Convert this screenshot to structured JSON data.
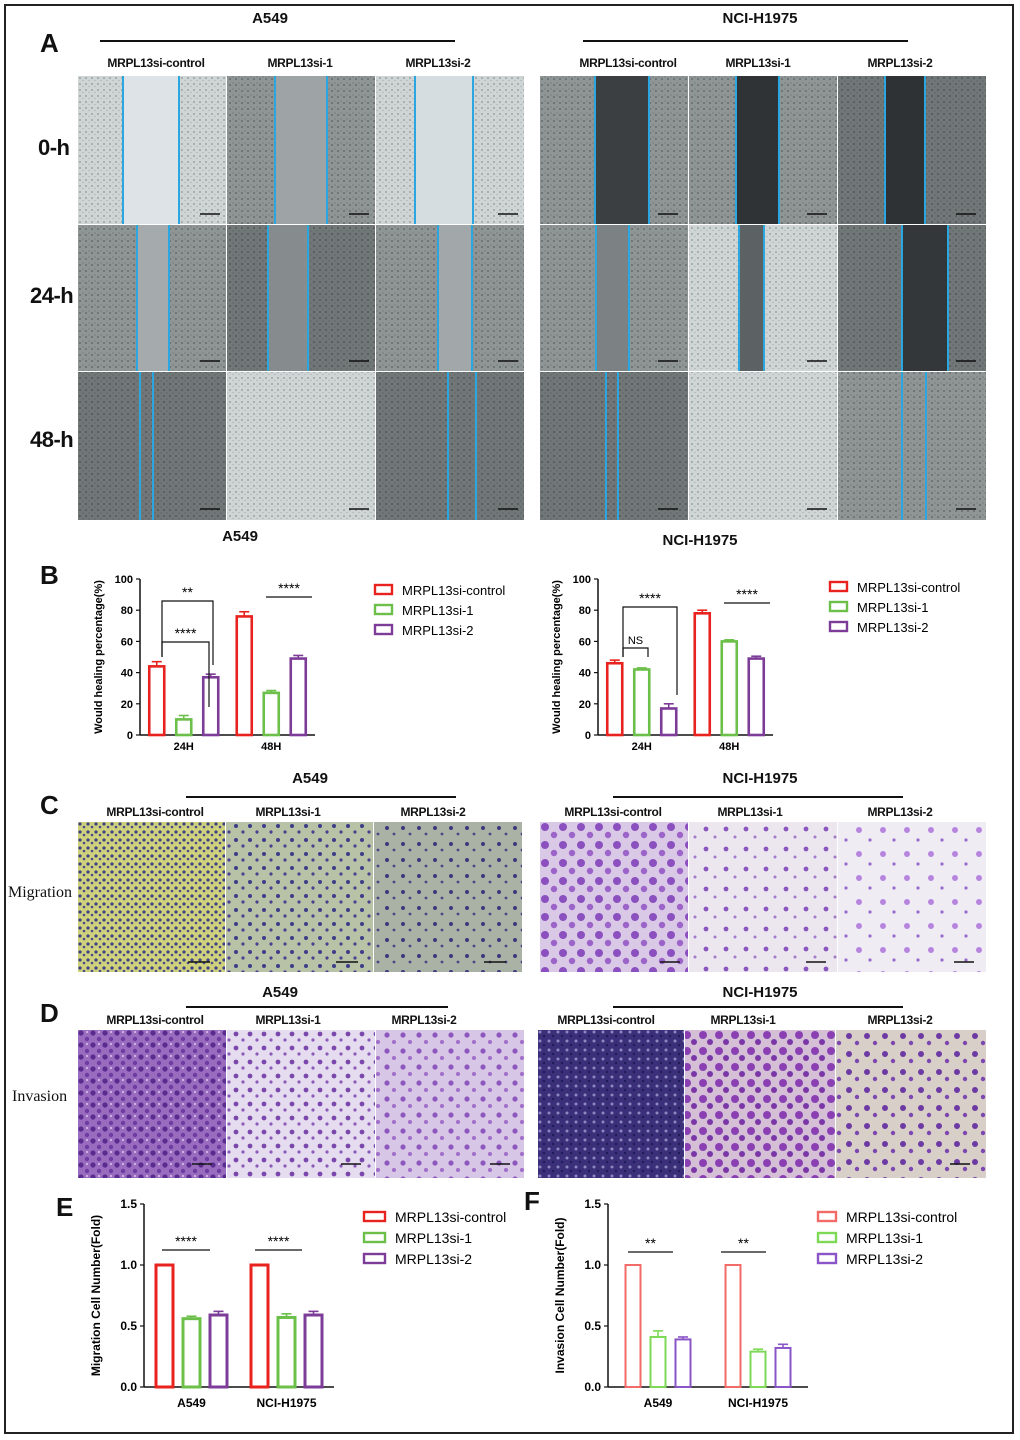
{
  "panels": {
    "A": "A",
    "B": "B",
    "C": "C",
    "D": "D",
    "E": "E",
    "F": "F"
  },
  "scratch": {
    "cell_lines": [
      "A549",
      "NCI-H1975"
    ],
    "groups": [
      "MRPL13si-control",
      "MRPL13si-1",
      "MRPL13si-2"
    ],
    "timepoints": [
      "0-h",
      "24-h",
      "48-h"
    ]
  },
  "transwell": {
    "migration_label": "Migration",
    "invasion_label": "Invasion"
  },
  "chart_data": [
    {
      "type": "bar",
      "panel": "B-left",
      "title": "A549",
      "ylabel": "Would healing percentage(%)",
      "categories": [
        "24H",
        "48H"
      ],
      "series": [
        {
          "name": "MRPL13si-control",
          "values": [
            44,
            76
          ],
          "errors": [
            3,
            3
          ],
          "color": "#e8231f"
        },
        {
          "name": "MRPL13si-1",
          "values": [
            10,
            27
          ],
          "errors": [
            2.5,
            1.5
          ],
          "color": "#6cc04a"
        },
        {
          "name": "MRPL13si-2",
          "values": [
            37,
            49
          ],
          "errors": [
            2,
            2
          ],
          "color": "#7d3c98"
        }
      ],
      "ylim": [
        0,
        100
      ],
      "yticks": [
        0,
        20,
        40,
        60,
        80,
        100
      ],
      "significance": [
        "****",
        "**",
        "****"
      ]
    },
    {
      "type": "bar",
      "panel": "B-right",
      "title": "NCI-H1975",
      "ylabel": "Would healing percentage(%)",
      "categories": [
        "24H",
        "48H"
      ],
      "series": [
        {
          "name": "MRPL13si-control",
          "values": [
            46,
            78
          ],
          "errors": [
            2,
            2
          ],
          "color": "#e8231f"
        },
        {
          "name": "MRPL13si-1",
          "values": [
            42,
            60
          ],
          "errors": [
            1,
            1
          ],
          "color": "#6cc04a"
        },
        {
          "name": "MRPL13si-2",
          "values": [
            17,
            49
          ],
          "errors": [
            3,
            1.5
          ],
          "color": "#7d3c98"
        }
      ],
      "ylim": [
        0,
        100
      ],
      "yticks": [
        0,
        20,
        40,
        60,
        80,
        100
      ],
      "significance": [
        "NS",
        "****",
        "****"
      ]
    },
    {
      "type": "bar",
      "panel": "E",
      "ylabel": "Migration Cell Number(Fold)",
      "categories": [
        "A549",
        "NCI-H1975"
      ],
      "series": [
        {
          "name": "MRPL13si-control",
          "values": [
            1.0,
            1.0
          ],
          "errors": [
            0,
            0
          ],
          "color": "#e8231f"
        },
        {
          "name": "MRPL13si-1",
          "values": [
            0.56,
            0.57
          ],
          "errors": [
            0.02,
            0.03
          ],
          "color": "#6cc04a"
        },
        {
          "name": "MRPL13si-2",
          "values": [
            0.59,
            0.59
          ],
          "errors": [
            0.03,
            0.03
          ],
          "color": "#7d3c98"
        }
      ],
      "ylim": [
        0,
        1.5
      ],
      "yticks": [
        0.0,
        0.5,
        1.0,
        1.5
      ],
      "significance": [
        "****",
        "****"
      ]
    },
    {
      "type": "bar",
      "panel": "F",
      "ylabel": "Invasion Cell Number(Fold)",
      "categories": [
        "A549",
        "NCI-H1975"
      ],
      "series": [
        {
          "name": "MRPL13si-control",
          "values": [
            1.0,
            1.0
          ],
          "errors": [
            0,
            0
          ],
          "color": "#f26b68"
        },
        {
          "name": "MRPL13si-1",
          "values": [
            0.41,
            0.29
          ],
          "errors": [
            0.05,
            0.02
          ],
          "color": "#7ed957"
        },
        {
          "name": "MRPL13si-2",
          "values": [
            0.39,
            0.32
          ],
          "errors": [
            0.02,
            0.03
          ],
          "color": "#8a55c7"
        }
      ],
      "ylim": [
        0,
        1.5
      ],
      "yticks": [
        0.0,
        0.5,
        1.0,
        1.5
      ],
      "significance": [
        "**",
        "**"
      ]
    }
  ]
}
